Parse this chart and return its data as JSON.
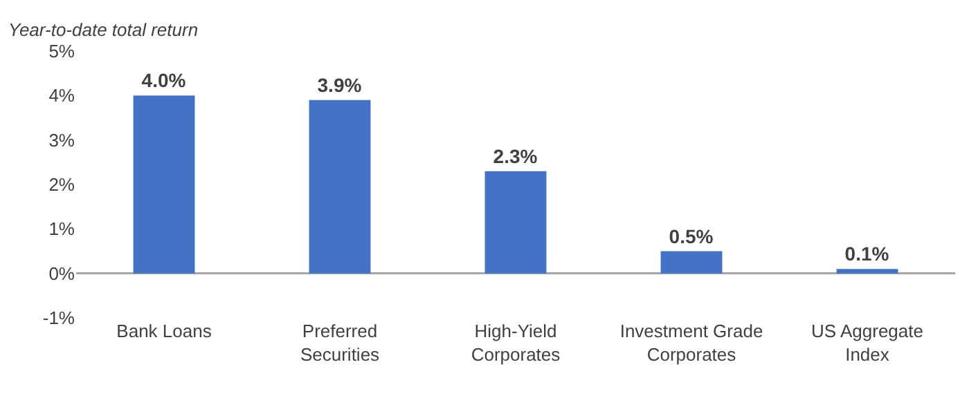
{
  "chart_data": {
    "type": "bar",
    "title": "Year-to-date total return",
    "categories": [
      "Bank Loans",
      "Preferred\nSecurities",
      "High-Yield\nCorporates",
      "Investment Grade\nCorporates",
      "US Aggregate\nIndex"
    ],
    "values": [
      4.0,
      3.9,
      2.3,
      0.5,
      0.1
    ],
    "value_labels": [
      "4.0%",
      "3.9%",
      "2.3%",
      "0.5%",
      "0.1%"
    ],
    "color": "#4472c4",
    "ylim": [
      -1,
      5
    ],
    "yticks": [
      {
        "value": -1,
        "label": "-1%"
      },
      {
        "value": 0,
        "label": "0%"
      },
      {
        "value": 1,
        "label": "1%"
      },
      {
        "value": 2,
        "label": "2%"
      },
      {
        "value": 3,
        "label": "3%"
      },
      {
        "value": 4,
        "label": "4%"
      },
      {
        "value": 5,
        "label": "5%"
      }
    ]
  }
}
